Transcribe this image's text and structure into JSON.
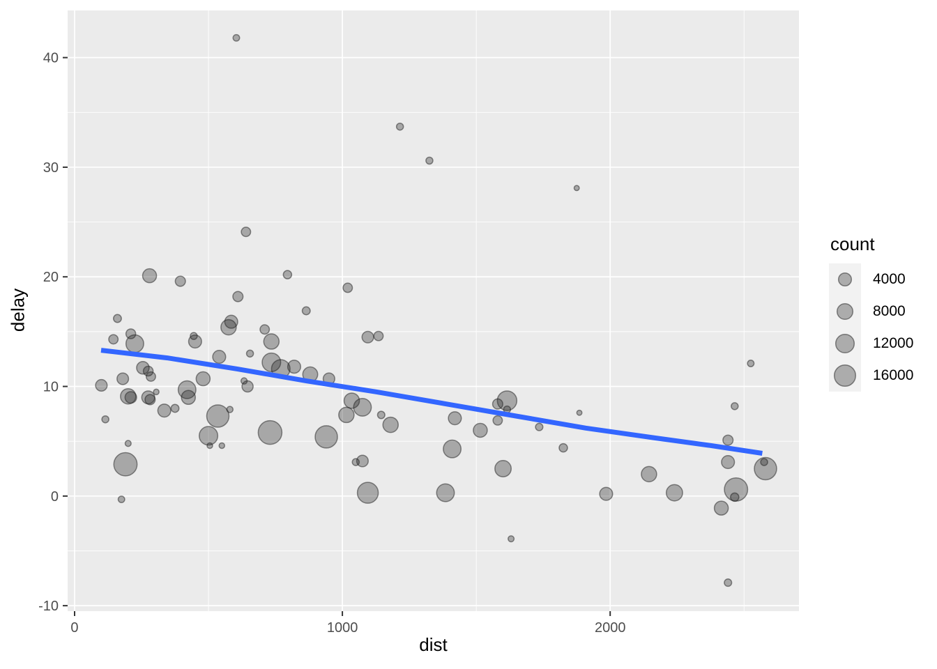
{
  "figure": {
    "background": "#FFFFFF"
  },
  "panel": {
    "background": "#EBEBEB",
    "grid_major_color": "#FFFFFF",
    "grid_minor_color": "#FFFFFF",
    "tick_mark_color": "#333333"
  },
  "style": {
    "point_fill": "rgba(30,30,30,0.33)",
    "point_stroke": "rgba(30,30,30,0.5)",
    "smooth_color": "#3366FF",
    "tick_label_color": "#4D4D4D"
  },
  "chart_data": {
    "type": "scatter",
    "title": "",
    "xlabel": "dist",
    "ylabel": "delay",
    "xlim": [
      -26,
      2705
    ],
    "ylim": [
      -10.5,
      44.3
    ],
    "grid": true,
    "x_ticks": [
      0,
      1000,
      2000
    ],
    "x_minor_ticks": [
      500,
      1500,
      2500
    ],
    "y_ticks": [
      -10,
      0,
      10,
      20,
      30,
      40
    ],
    "y_minor_ticks": [
      -5,
      5,
      15,
      25,
      35
    ],
    "legend": {
      "title": "count",
      "position": "right",
      "counts": [
        4000,
        8000,
        12000,
        16000
      ],
      "key_radius_px": [
        9.3,
        11.3,
        13.3,
        15.3
      ]
    },
    "points_format": [
      "dist",
      "delay",
      "count",
      "radius_px"
    ],
    "points": [
      [
        604,
        41.8,
        220,
        4.7
      ],
      [
        1215,
        33.7,
        330,
        5.0
      ],
      [
        1325,
        30.6,
        330,
        5.0
      ],
      [
        1875,
        28.1,
        150,
        3.7
      ],
      [
        640,
        24.1,
        1300,
        6.7
      ],
      [
        280,
        20.1,
        5000,
        10.0
      ],
      [
        795,
        20.2,
        820,
        6.0
      ],
      [
        395,
        19.6,
        1800,
        7.3
      ],
      [
        1020,
        19.0,
        1300,
        6.7
      ],
      [
        610,
        18.2,
        1800,
        7.3
      ],
      [
        865,
        16.9,
        650,
        5.7
      ],
      [
        160,
        16.2,
        650,
        5.7
      ],
      [
        585,
        15.9,
        4000,
        9.3
      ],
      [
        575,
        15.4,
        6500,
        11.0
      ],
      [
        710,
        15.2,
        1300,
        6.7
      ],
      [
        210,
        14.8,
        1600,
        7.0
      ],
      [
        445,
        14.6,
        330,
        5.0
      ],
      [
        1135,
        14.6,
        1300,
        6.7
      ],
      [
        1095,
        14.5,
        2800,
        8.3
      ],
      [
        450,
        14.1,
        4000,
        9.3
      ],
      [
        735,
        14.1,
        6500,
        11.0
      ],
      [
        145,
        14.3,
        1300,
        6.7
      ],
      [
        225,
        13.9,
        9800,
        12.7
      ],
      [
        655,
        13.0,
        330,
        5.0
      ],
      [
        540,
        12.7,
        4000,
        9.3
      ],
      [
        2525,
        12.1,
        220,
        4.7
      ],
      [
        255,
        11.7,
        3600,
        9.0
      ],
      [
        275,
        11.4,
        1500,
        7.0
      ],
      [
        820,
        11.8,
        4000,
        9.3
      ],
      [
        735,
        12.2,
        11000,
        13.3
      ],
      [
        770,
        11.6,
        11000,
        13.3
      ],
      [
        880,
        11.1,
        6000,
        10.7
      ],
      [
        285,
        10.9,
        1300,
        6.7
      ],
      [
        180,
        10.7,
        2800,
        8.3
      ],
      [
        480,
        10.7,
        5000,
        10.0
      ],
      [
        950,
        10.7,
        2800,
        8.3
      ],
      [
        100,
        10.1,
        2800,
        8.3
      ],
      [
        200,
        9.1,
        6500,
        11.0
      ],
      [
        210,
        9.0,
        2800,
        8.3
      ],
      [
        275,
        9.0,
        4000,
        9.3
      ],
      [
        282,
        8.8,
        1800,
        7.3
      ],
      [
        305,
        9.5,
        150,
        4.0
      ],
      [
        420,
        9.7,
        9800,
        12.7
      ],
      [
        425,
        9.0,
        5000,
        10.0
      ],
      [
        646,
        10.0,
        2400,
        8.0
      ],
      [
        633,
        10.5,
        200,
        4.5
      ],
      [
        1035,
        8.7,
        6500,
        11.0
      ],
      [
        1075,
        8.1,
        9800,
        12.7
      ],
      [
        1015,
        7.4,
        6500,
        11.0
      ],
      [
        1145,
        7.4,
        450,
        5.3
      ],
      [
        1615,
        8.7,
        12600,
        14.0
      ],
      [
        1580,
        8.4,
        1800,
        7.3
      ],
      [
        1615,
        7.9,
        330,
        5.0
      ],
      [
        1885,
        7.6,
        150,
        3.7
      ],
      [
        335,
        7.8,
        4000,
        9.3
      ],
      [
        375,
        8.0,
        650,
        5.7
      ],
      [
        115,
        7.0,
        330,
        5.0
      ],
      [
        535,
        7.3,
        17000,
        16.0
      ],
      [
        580,
        7.9,
        200,
        4.5
      ],
      [
        1420,
        7.1,
        4000,
        9.3
      ],
      [
        1580,
        6.9,
        1300,
        6.7
      ],
      [
        1180,
        6.5,
        6500,
        11.0
      ],
      [
        1515,
        6.0,
        5000,
        10.0
      ],
      [
        1735,
        6.3,
        450,
        5.3
      ],
      [
        200,
        4.8,
        150,
        4.3
      ],
      [
        500,
        5.5,
        11000,
        13.3
      ],
      [
        505,
        4.6,
        150,
        4.0
      ],
      [
        550,
        4.6,
        150,
        4.0
      ],
      [
        730,
        5.8,
        17300,
        17.0
      ],
      [
        940,
        5.4,
        15000,
        16.0
      ],
      [
        1050,
        3.1,
        330,
        5.0
      ],
      [
        1075,
        3.2,
        2800,
        8.3
      ],
      [
        1095,
        0.3,
        15000,
        15.0
      ],
      [
        1385,
        0.3,
        9800,
        12.7
      ],
      [
        1410,
        4.3,
        9800,
        12.7
      ],
      [
        1600,
        2.5,
        7800,
        11.7
      ],
      [
        1630,
        -3.9,
        150,
        4.3
      ],
      [
        1825,
        4.4,
        820,
        6.0
      ],
      [
        1985,
        0.2,
        4000,
        9.3
      ],
      [
        2145,
        2.0,
        6500,
        11.0
      ],
      [
        2240,
        0.3,
        7800,
        11.7
      ],
      [
        2440,
        5.1,
        1800,
        7.3
      ],
      [
        2465,
        8.2,
        330,
        5.0
      ],
      [
        2440,
        3.1,
        4000,
        9.3
      ],
      [
        2575,
        3.1,
        330,
        5.0
      ],
      [
        2580,
        2.5,
        16000,
        16.0
      ],
      [
        2470,
        0.6,
        16000,
        16.7
      ],
      [
        2465,
        -0.1,
        820,
        6.0
      ],
      [
        2415,
        -1.1,
        5000,
        10.0
      ],
      [
        2440,
        -7.9,
        450,
        5.3
      ],
      [
        175,
        -0.3,
        220,
        4.7
      ],
      [
        190,
        2.9,
        16000,
        16.7
      ]
    ],
    "smooth_line": [
      [
        99,
        13.3
      ],
      [
        346,
        12.6
      ],
      [
        607,
        11.6
      ],
      [
        867,
        10.5
      ],
      [
        1128,
        9.5
      ],
      [
        1388,
        8.4
      ],
      [
        1648,
        7.3
      ],
      [
        1909,
        6.2
      ],
      [
        2169,
        5.3
      ],
      [
        2378,
        4.6
      ],
      [
        2568,
        3.9
      ]
    ]
  }
}
